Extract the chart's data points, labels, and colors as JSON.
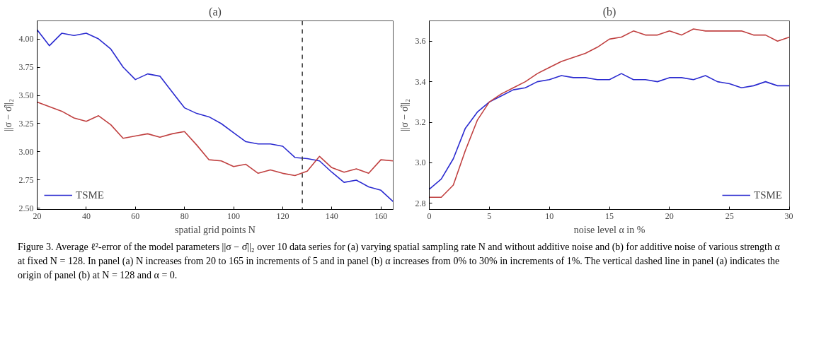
{
  "chart_data": [
    {
      "type": "line",
      "title": "(a)",
      "xlabel": "spatial grid points N",
      "ylabel": "||σ − σ̂||₂",
      "xlim": [
        20,
        165
      ],
      "ylim": [
        2.49,
        4.16
      ],
      "xticks": [
        20,
        40,
        60,
        80,
        100,
        120,
        140,
        160
      ],
      "yticks": [
        {
          "value": 2.5,
          "label": "2.50"
        },
        {
          "value": 2.75,
          "label": "2.75"
        },
        {
          "value": 3.0,
          "label": "3.00"
        },
        {
          "value": 3.25,
          "label": "3.25"
        },
        {
          "value": 3.5,
          "label": "3.50"
        },
        {
          "value": 3.75,
          "label": "3.75"
        },
        {
          "value": 4.0,
          "label": "4.00"
        }
      ],
      "grid": false,
      "legend": "bottom left",
      "line_style": "solid",
      "x": [
        20,
        25,
        30,
        35,
        40,
        45,
        50,
        55,
        60,
        65,
        70,
        75,
        80,
        85,
        90,
        95,
        100,
        105,
        110,
        115,
        120,
        125,
        130,
        135,
        140,
        145,
        150,
        155,
        160,
        165
      ],
      "series": [
        {
          "name": "TSME",
          "color": "#2b2bd0",
          "values": [
            4.08,
            3.94,
            4.05,
            4.03,
            4.05,
            4.0,
            3.91,
            3.75,
            3.64,
            3.69,
            3.67,
            3.53,
            3.39,
            3.34,
            3.31,
            3.25,
            3.17,
            3.09,
            3.07,
            3.07,
            3.05,
            2.95,
            2.94,
            2.92,
            2.82,
            2.73,
            2.75,
            2.69,
            2.66,
            2.56
          ]
        },
        {
          "color": "#c04040",
          "values": [
            3.44,
            3.4,
            3.36,
            3.3,
            3.27,
            3.32,
            3.24,
            3.12,
            3.14,
            3.16,
            3.13,
            3.16,
            3.18,
            3.06,
            2.93,
            2.92,
            2.87,
            2.89,
            2.81,
            2.84,
            2.81,
            2.79,
            2.83,
            2.96,
            2.86,
            2.82,
            2.85,
            2.81,
            2.93,
            2.92
          ]
        }
      ],
      "ref_lines": [
        {
          "axis": "x",
          "value": 128,
          "color": "#404040",
          "line_style": "dashed"
        }
      ]
    },
    {
      "type": "line",
      "title": "(b)",
      "xlabel": "noise level α in %",
      "ylabel": "||σ − σ̂||₂",
      "xlim": [
        0,
        30
      ],
      "ylim": [
        2.77,
        3.7
      ],
      "xticks": [
        0,
        5,
        10,
        15,
        20,
        25,
        30
      ],
      "yticks": [
        2.8,
        {
          "value": 3.0,
          "label": "3.0"
        },
        3.2,
        3.4,
        3.6
      ],
      "grid": false,
      "legend": "bottom right",
      "line_style": "solid",
      "x": [
        0,
        1,
        2,
        3,
        4,
        5,
        6,
        7,
        8,
        9,
        10,
        11,
        12,
        13,
        14,
        15,
        16,
        17,
        18,
        19,
        20,
        21,
        22,
        23,
        24,
        25,
        26,
        27,
        28,
        29,
        30
      ],
      "series": [
        {
          "name": "TSME",
          "color": "#2b2bd0",
          "values": [
            2.87,
            2.92,
            3.02,
            3.17,
            3.25,
            3.3,
            3.33,
            3.36,
            3.37,
            3.4,
            3.41,
            3.43,
            3.42,
            3.42,
            3.41,
            3.41,
            3.44,
            3.41,
            3.41,
            3.4,
            3.42,
            3.42,
            3.41,
            3.43,
            3.4,
            3.39,
            3.37,
            3.38,
            3.4,
            3.38,
            3.38
          ]
        },
        {
          "color": "#c04040",
          "values": [
            2.83,
            2.83,
            2.89,
            3.06,
            3.21,
            3.3,
            3.34,
            3.37,
            3.4,
            3.44,
            3.47,
            3.5,
            3.52,
            3.54,
            3.57,
            3.61,
            3.62,
            3.65,
            3.63,
            3.63,
            3.65,
            3.63,
            3.66,
            3.65,
            3.65,
            3.65,
            3.65,
            3.63,
            3.63,
            3.6,
            3.62
          ]
        }
      ],
      "annotations": [
        "Figure 3. Average ℓ²-error of the model parameters ||σ − σ̂||₂ over 10 data series for (a) varying spatial sampling rate N and without additive noise and (b) for additive noise of various strength α at fixed N = 128. In panel (a) N increases from 20 to 165 in increments of 5 and in panel (b) α increases from 0% to 30% in increments of 1%. The vertical dashed line in panel (a) indicates the origin of panel (b) at N = 128 and α = 0."
      ]
    }
  ]
}
